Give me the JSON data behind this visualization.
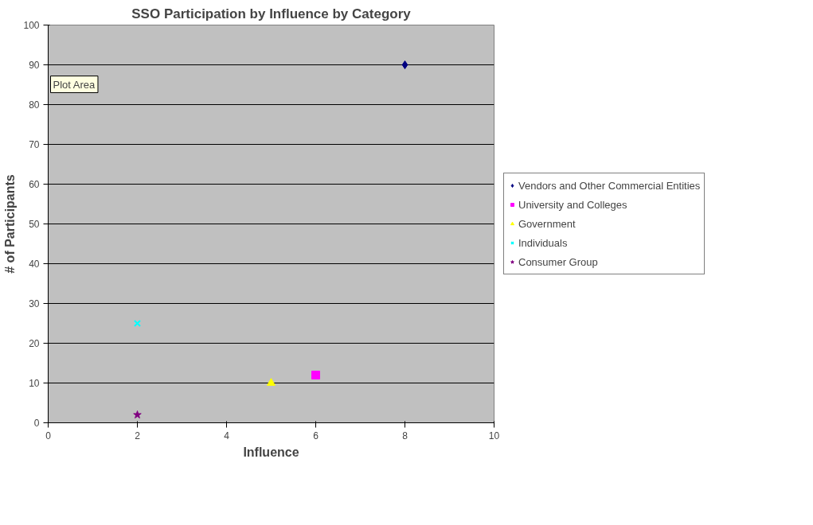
{
  "chart_data": {
    "type": "scatter",
    "title": "SSO Participation by Influence by Category",
    "xlabel": "Influence",
    "ylabel": "# of Participants",
    "xlim": [
      0,
      10
    ],
    "xticks": [
      0,
      2,
      4,
      6,
      8,
      10
    ],
    "ylim": [
      0,
      100
    ],
    "yticks": [
      0,
      10,
      20,
      30,
      40,
      50,
      60,
      70,
      80,
      90,
      100
    ],
    "grid": "y",
    "legend": "right",
    "series": [
      {
        "name": "Vendors and Other Commercial Entities",
        "color": "#000080",
        "marker": "diamond",
        "x": [
          8
        ],
        "values": [
          90
        ]
      },
      {
        "name": "University and Colleges",
        "color": "#ff00ff",
        "marker": "square",
        "x": [
          6
        ],
        "values": [
          12
        ]
      },
      {
        "name": "Government",
        "color": "#ffff00",
        "marker": "triangle",
        "x": [
          5
        ],
        "values": [
          10
        ]
      },
      {
        "name": "Individuals",
        "color": "#00ffff",
        "marker": "cross",
        "x": [
          2
        ],
        "values": [
          25
        ]
      },
      {
        "name": "Consumer Group",
        "color": "#800080",
        "marker": "star",
        "x": [
          2
        ],
        "values": [
          2
        ]
      }
    ],
    "annotations": [
      "Plot Area"
    ]
  }
}
